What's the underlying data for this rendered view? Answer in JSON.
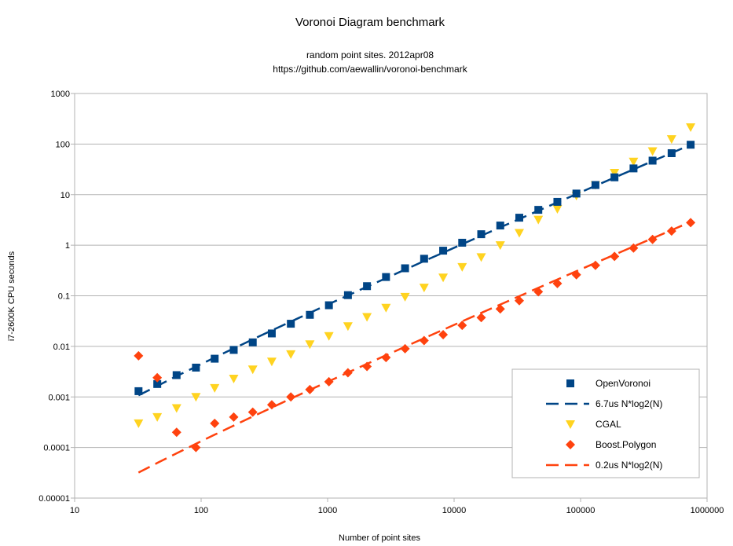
{
  "chart_data": {
    "type": "scatter",
    "title": "Voronoi Diagram benchmark",
    "subtitle_lines": [
      "random point sites. 2012apr08",
      "https://github.com/aewallin/voronoi-benchmark"
    ],
    "xlabel": "Number of point sites",
    "ylabel": "i7-2600K CPU seconds",
    "xscale": "log",
    "yscale": "log",
    "xlim": [
      10,
      1000000
    ],
    "ylim": [
      1e-05,
      1000
    ],
    "xticks": [
      "10",
      "100",
      "1000",
      "10000",
      "100000",
      "1000000"
    ],
    "yticks": [
      "0.00001",
      "0.0001",
      "0.001",
      "0.01",
      "0.1",
      "1",
      "10",
      "100",
      "1000"
    ],
    "grid": "horizontal",
    "legend_position": "bottom-right",
    "x": [
      32,
      45,
      64,
      91,
      128,
      181,
      256,
      362,
      512,
      724,
      1024,
      1448,
      2048,
      2896,
      4096,
      5793,
      8192,
      11585,
      16384,
      23170,
      32768,
      46341,
      65536,
      92682,
      131072,
      185364,
      262144,
      370728,
      524288,
      741455
    ],
    "series": [
      {
        "name": "OpenVoronoi",
        "kind": "points",
        "marker": "square",
        "color": "#004586",
        "values": [
          0.0013,
          0.0018,
          0.0027,
          0.0038,
          0.0057,
          0.0085,
          0.012,
          0.018,
          0.028,
          0.042,
          0.065,
          0.103,
          0.155,
          0.235,
          0.35,
          0.54,
          0.78,
          1.12,
          1.65,
          2.45,
          3.5,
          5.0,
          7.2,
          10.5,
          15.5,
          22,
          33,
          47,
          66,
          97
        ]
      },
      {
        "name": "6.7us N*log2(N)",
        "kind": "line",
        "dash": "long",
        "color": "#004586",
        "coef": 6.7e-06
      },
      {
        "name": "CGAL",
        "kind": "points",
        "marker": "triangle-down",
        "color": "#ffd320",
        "values": [
          0.0003,
          0.0004,
          0.0006,
          0.001,
          0.0015,
          0.0023,
          0.0035,
          0.005,
          0.007,
          0.011,
          0.016,
          0.025,
          0.038,
          0.058,
          0.095,
          0.145,
          0.23,
          0.37,
          0.58,
          1.0,
          1.75,
          3.2,
          5.2,
          9.5,
          15.5,
          27,
          45,
          72,
          125,
          215
        ]
      },
      {
        "name": "Boost.Polygon",
        "kind": "points",
        "marker": "diamond",
        "color": "#ff420e",
        "values": [
          0.0065,
          0.0024,
          0.0002,
          0.0001,
          0.0003,
          0.0004,
          0.0005,
          0.0007,
          0.001,
          0.0014,
          0.002,
          0.003,
          0.004,
          0.006,
          0.009,
          0.013,
          0.017,
          0.026,
          0.037,
          0.055,
          0.08,
          0.12,
          0.175,
          0.26,
          0.4,
          0.6,
          0.88,
          1.3,
          1.9,
          2.8
        ]
      },
      {
        "name": "0.2us N*log2(N)",
        "kind": "line",
        "dash": "long",
        "color": "#ff420e",
        "coef": 2e-07
      }
    ]
  }
}
